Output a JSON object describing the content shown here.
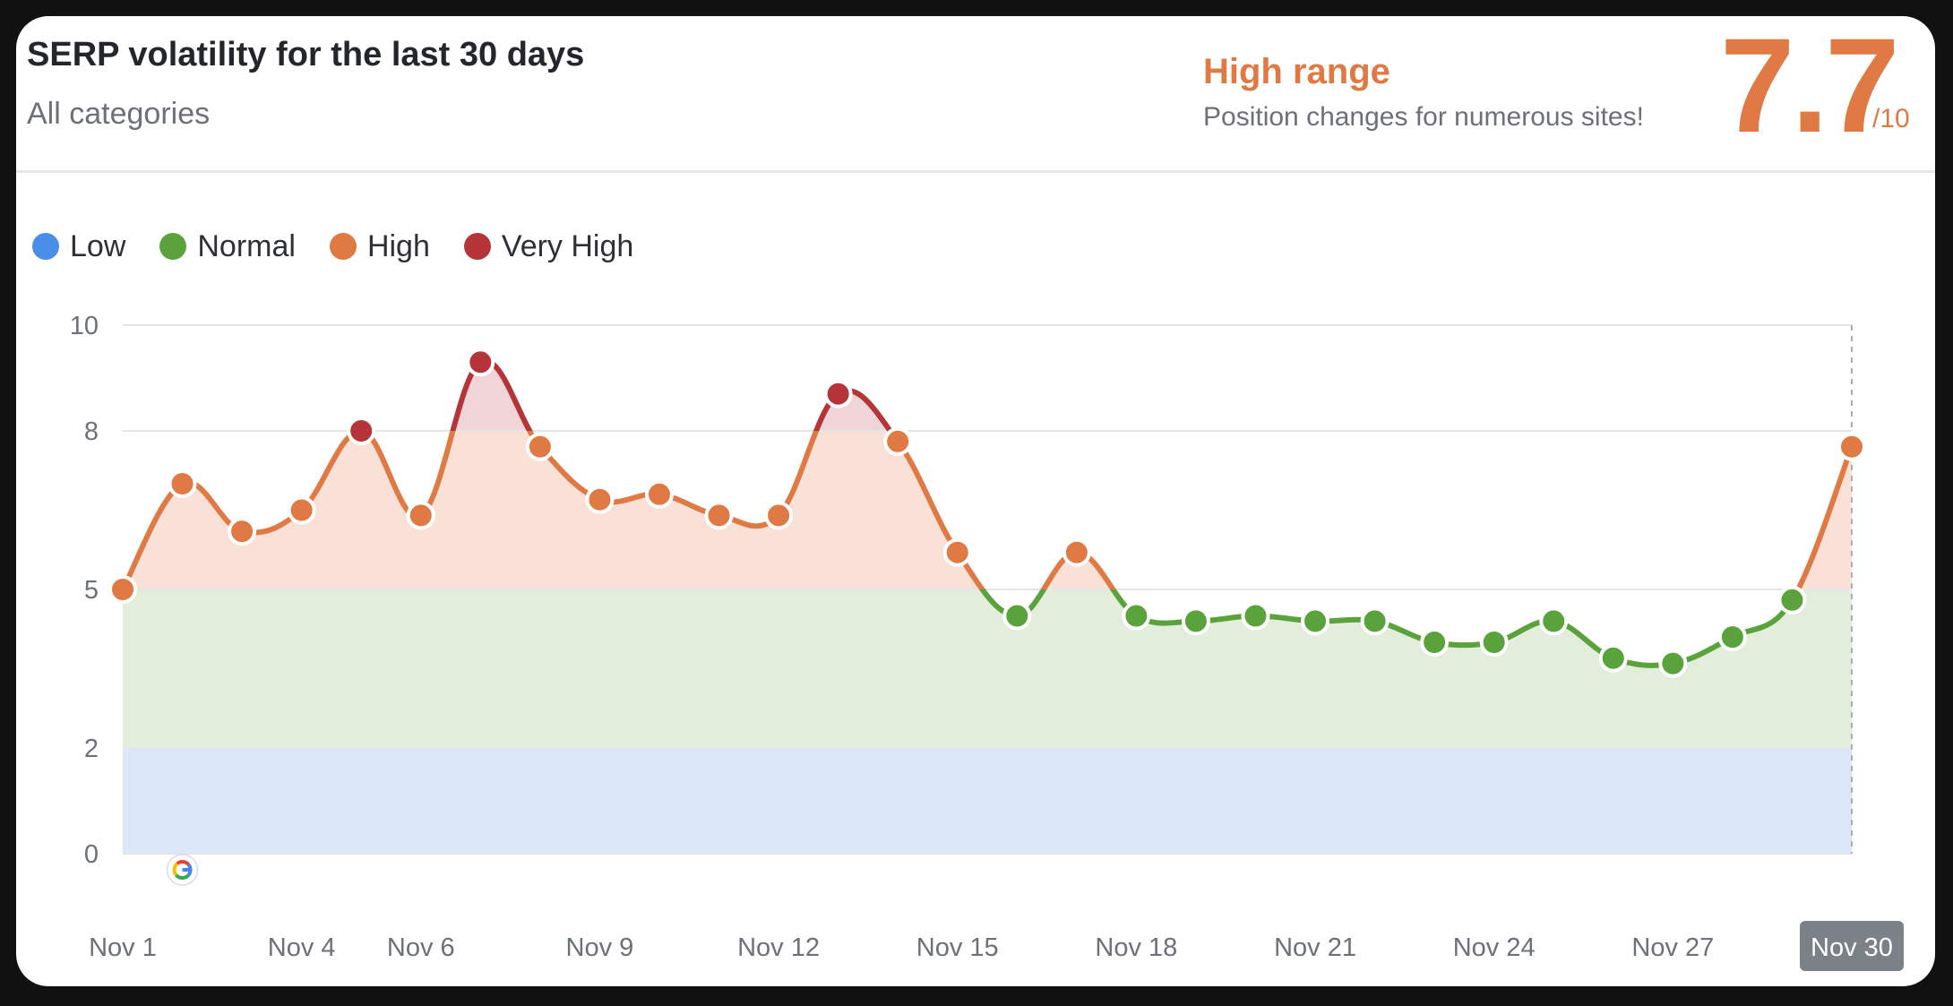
{
  "header": {
    "title": "SERP volatility for the last 30 days",
    "subtitle": "All categories",
    "range_label": "High range",
    "range_description": "Position changes for numerous sites!",
    "score": "7.7",
    "score_max": "/10"
  },
  "legend": [
    {
      "label": "Low",
      "color": "#4a8fe7"
    },
    {
      "label": "Normal",
      "color": "#5aa33c"
    },
    {
      "label": "High",
      "color": "#e07a45"
    },
    {
      "label": "Very High",
      "color": "#b5343a"
    }
  ],
  "chart_data": {
    "type": "line",
    "title": "SERP volatility for the last 30 days",
    "x": [
      "Nov 1",
      "Nov 2",
      "Nov 3",
      "Nov 4",
      "Nov 5",
      "Nov 6",
      "Nov 7",
      "Nov 8",
      "Nov 9",
      "Nov 10",
      "Nov 11",
      "Nov 12",
      "Nov 13",
      "Nov 14",
      "Nov 15",
      "Nov 16",
      "Nov 17",
      "Nov 18",
      "Nov 19",
      "Nov 20",
      "Nov 21",
      "Nov 22",
      "Nov 23",
      "Nov 24",
      "Nov 25",
      "Nov 26",
      "Nov 27",
      "Nov 28",
      "Nov 29",
      "Nov 30"
    ],
    "x_tick_labels": [
      "Nov 1",
      "Nov 4",
      "Nov 6",
      "Nov 9",
      "Nov 12",
      "Nov 15",
      "Nov 18",
      "Nov 21",
      "Nov 24",
      "Nov 27",
      "Nov 30"
    ],
    "highlighted_x": "Nov 30",
    "y_ticks": [
      0,
      2,
      5,
      8,
      10
    ],
    "ylim": [
      0,
      10
    ],
    "values": [
      5.0,
      7.0,
      6.1,
      6.5,
      8.0,
      6.4,
      9.3,
      7.7,
      6.7,
      6.8,
      6.4,
      6.4,
      8.7,
      7.8,
      5.7,
      4.5,
      5.7,
      4.5,
      4.4,
      4.5,
      4.4,
      4.4,
      4.0,
      4.0,
      4.4,
      3.7,
      3.6,
      4.1,
      4.8,
      7.7
    ],
    "bands": [
      {
        "label": "Low",
        "from": 0,
        "to": 2,
        "color": "#dce8f8"
      },
      {
        "label": "Normal",
        "from": 2,
        "to": 5,
        "color": "#e2eedb"
      },
      {
        "label": "High",
        "from": 5,
        "to": 8,
        "color": "#f9e1d8"
      },
      {
        "label": "Very High",
        "from": 8,
        "to": 10,
        "color": "#efd4d8"
      }
    ],
    "colors": {
      "low": "#4a8fe7",
      "normal": "#5aa33c",
      "high": "#e07a45",
      "very_high": "#b5343a"
    },
    "annotations": [
      {
        "x": "Nov 2",
        "icon": "google-icon"
      }
    ],
    "grid": true
  }
}
